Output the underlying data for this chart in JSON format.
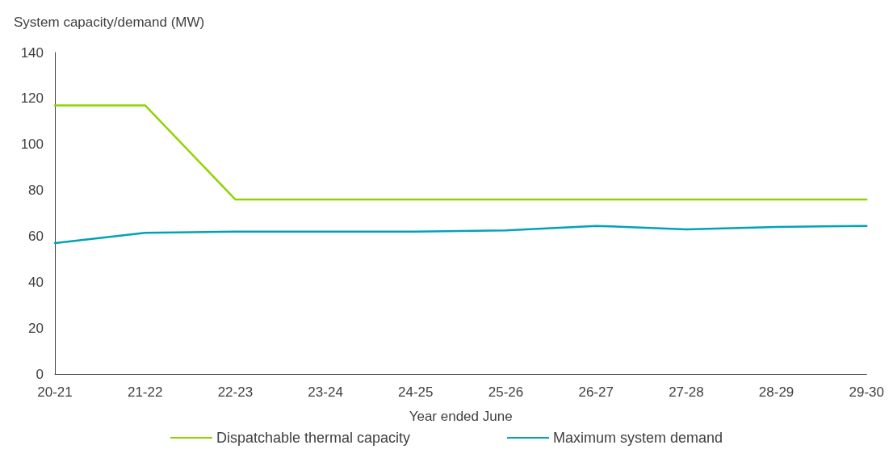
{
  "chart_data": {
    "type": "line",
    "ylabel": "System capacity/demand (MW)",
    "xlabel": "Year ended June",
    "categories": [
      "20-21",
      "21-22",
      "22-23",
      "23-24",
      "24-25",
      "25-26",
      "26-27",
      "27-28",
      "28-29",
      "29-30"
    ],
    "series": [
      {
        "name": "Dispatchable thermal capacity",
        "color": "#8fd400",
        "values": [
          117,
          117,
          76,
          76,
          76,
          76,
          76,
          76,
          76,
          76
        ]
      },
      {
        "name": "Maximum system demand",
        "color": "#00a3b4",
        "values": [
          57,
          61.5,
          62,
          62,
          62,
          62.5,
          64.5,
          63,
          64,
          64.5
        ]
      }
    ],
    "ylim": [
      0,
      140
    ],
    "yticks": [
      0,
      20,
      40,
      60,
      80,
      100,
      120,
      140
    ],
    "grid": false,
    "legend": "bottom",
    "marker": "none",
    "line_style": "solid"
  }
}
